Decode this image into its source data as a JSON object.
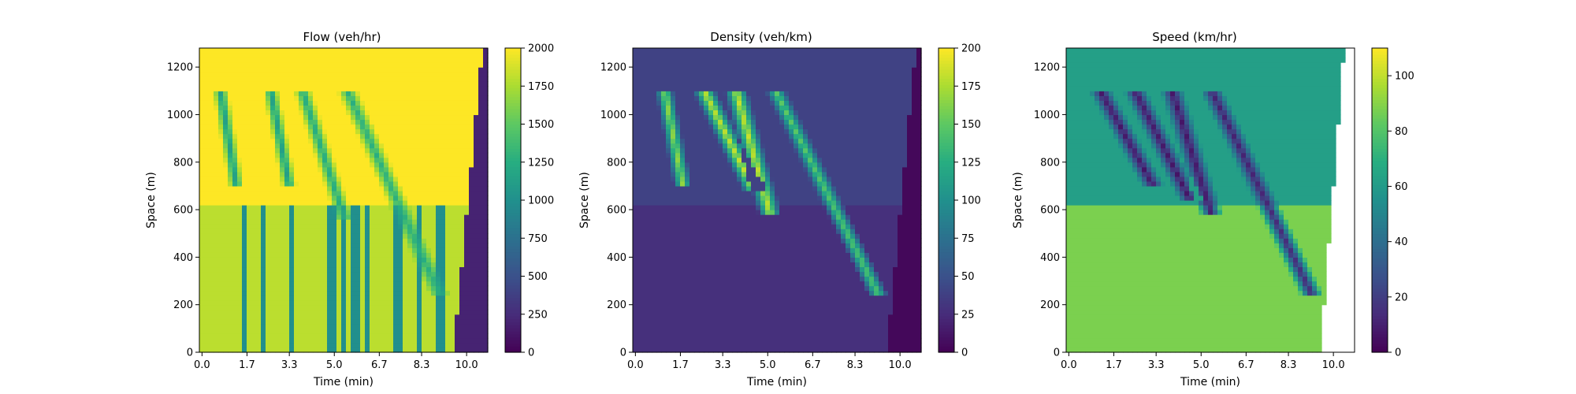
{
  "figure": {
    "background": "#ffffff"
  },
  "chart_data": [
    {
      "type": "heatmap",
      "title": "Flow (veh/hr)",
      "xlabel": "Time (min)",
      "ylabel": "Space (m)",
      "x_ticks": [
        "0.0",
        "1.7",
        "3.3",
        "5.0",
        "6.7",
        "8.3",
        "10.0"
      ],
      "x_tick_values": [
        0.0,
        1.7,
        3.3,
        5.0,
        6.7,
        8.3,
        10.0
      ],
      "xlim": [
        -0.1,
        10.8
      ],
      "y_ticks": [
        "0",
        "200",
        "400",
        "600",
        "800",
        "1000",
        "1200"
      ],
      "y_tick_values": [
        0,
        200,
        400,
        600,
        800,
        1000,
        1200
      ],
      "ylim": [
        0,
        1280
      ],
      "colorbar": {
        "min": 0,
        "max": 2000,
        "ticks": [
          "0",
          "250",
          "500",
          "750",
          "1000",
          "1250",
          "1500",
          "1750",
          "2000"
        ],
        "tick_values": [
          0,
          250,
          500,
          750,
          1000,
          1250,
          1500,
          1750,
          2000
        ]
      },
      "colormap": "viridis",
      "empty_after_time": null,
      "background_value": 1800,
      "upper_base_value": 2000,
      "upper_section_from_space": 620,
      "queue_front": {
        "time_at_top": 10.6,
        "time_at_bottom": 9.5,
        "value_inside": 200
      },
      "shock_waves": [
        {
          "t_top": 0.7,
          "t_bottom": 1.3,
          "y_bottom": 700,
          "value": 1100,
          "width": 0.3
        },
        {
          "t_top": 2.6,
          "t_bottom": 3.3,
          "y_bottom": 700,
          "value": 1100,
          "width": 0.3
        },
        {
          "t_top": 3.8,
          "t_bottom": 5.4,
          "y_bottom": 560,
          "value": 1200,
          "width": 0.35
        },
        {
          "t_top": 5.5,
          "t_bottom": 9.0,
          "y_bottom": 240,
          "value": 1250,
          "width": 0.4
        }
      ],
      "vertical_streaks": [
        1.6,
        2.3,
        3.4,
        4.9,
        5.3,
        5.8,
        6.2,
        7.4,
        8.2,
        9.0
      ]
    },
    {
      "type": "heatmap",
      "title": "Density (veh/km)",
      "xlabel": "Time (min)",
      "ylabel": "Space (m)",
      "x_ticks": [
        "0.0",
        "1.7",
        "3.3",
        "5.0",
        "6.7",
        "8.3",
        "10.0"
      ],
      "x_tick_values": [
        0.0,
        1.7,
        3.3,
        5.0,
        6.7,
        8.3,
        10.0
      ],
      "xlim": [
        -0.1,
        10.8
      ],
      "y_ticks": [
        "0",
        "200",
        "400",
        "600",
        "800",
        "1000",
        "1200"
      ],
      "y_tick_values": [
        0,
        200,
        400,
        600,
        800,
        1000,
        1200
      ],
      "ylim": [
        0,
        1280
      ],
      "colorbar": {
        "min": 0,
        "max": 200,
        "ticks": [
          "0",
          "25",
          "50",
          "75",
          "100",
          "125",
          "150",
          "175",
          "200"
        ],
        "tick_values": [
          0,
          25,
          50,
          75,
          100,
          125,
          150,
          175,
          200
        ]
      },
      "colormap": "viridis",
      "empty_after_time": null,
      "background_value": 28,
      "upper_base_value": 40,
      "upper_section_from_space": 620,
      "queue_front": {
        "time_at_top": 10.6,
        "time_at_bottom": 9.5,
        "value_inside": 4
      },
      "shock_waves": [
        {
          "t_top": 1.1,
          "t_bottom": 1.8,
          "y_bottom": 700,
          "value": 170,
          "width": 0.35
        },
        {
          "t_top": 2.6,
          "t_bottom": 4.5,
          "y_bottom": 680,
          "value": 185,
          "width": 0.45
        },
        {
          "t_top": 3.8,
          "t_bottom": 5.1,
          "y_bottom": 580,
          "value": 185,
          "width": 0.45
        },
        {
          "t_top": 5.3,
          "t_bottom": 9.2,
          "y_bottom": 240,
          "value": 150,
          "width": 0.4
        }
      ],
      "vertical_streaks": []
    },
    {
      "type": "heatmap",
      "title": "Speed (km/hr)",
      "xlabel": "Time (min)",
      "ylabel": "Space (m)",
      "x_ticks": [
        "0.0",
        "1.7",
        "3.3",
        "5.0",
        "6.7",
        "8.3",
        "10.0"
      ],
      "x_tick_values": [
        0.0,
        1.7,
        3.3,
        5.0,
        6.7,
        8.3,
        10.0
      ],
      "xlim": [
        -0.1,
        10.8
      ],
      "y_ticks": [
        "0",
        "200",
        "400",
        "600",
        "800",
        "1000",
        "1200"
      ],
      "y_tick_values": [
        0,
        200,
        400,
        600,
        800,
        1000,
        1200
      ],
      "ylim": [
        0,
        1280
      ],
      "colorbar": {
        "min": 0,
        "max": 110,
        "ticks": [
          "0",
          "20",
          "40",
          "60",
          "80",
          "100"
        ],
        "tick_values": [
          0,
          20,
          40,
          60,
          80,
          100
        ]
      },
      "colormap": "viridis",
      "empty_after_time": {
        "time_at_top": 10.4,
        "time_at_bottom": 9.5
      },
      "background_value": 88,
      "upper_base_value": 62,
      "upper_section_from_space": 620,
      "queue_front": null,
      "shock_waves": [
        {
          "t_top": 1.2,
          "t_bottom": 3.2,
          "y_bottom": 700,
          "value": 6,
          "width": 0.45
        },
        {
          "t_top": 2.5,
          "t_bottom": 4.6,
          "y_bottom": 640,
          "value": 6,
          "width": 0.45
        },
        {
          "t_top": 3.9,
          "t_bottom": 5.4,
          "y_bottom": 580,
          "value": 6,
          "width": 0.45
        },
        {
          "t_top": 5.4,
          "t_bottom": 9.2,
          "y_bottom": 240,
          "value": 10,
          "width": 0.45
        }
      ],
      "vertical_streaks": []
    }
  ]
}
